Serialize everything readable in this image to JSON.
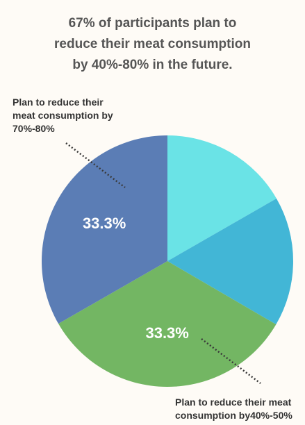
{
  "chart_data": {
    "type": "pie",
    "title_lines": [
      "67% of participants plan to",
      "reduce their meat consumption",
      "by 40%-80% in the future."
    ],
    "slices": [
      {
        "value": 16.7,
        "color": "#6ae3e6",
        "label": ""
      },
      {
        "value": 16.7,
        "color": "#42b6d6",
        "label": ""
      },
      {
        "value": 33.3,
        "color": "#73b663",
        "label": "33.3%"
      },
      {
        "value": 33.3,
        "color": "#5b7db5",
        "label": "33.3%"
      }
    ],
    "annotations": {
      "top": [
        "Plan to reduce their",
        "meat consumption by",
        "70%-80%"
      ],
      "bottom": [
        "Plan to reduce their meat",
        "consumption by40%-50%"
      ]
    },
    "legend": "none"
  }
}
